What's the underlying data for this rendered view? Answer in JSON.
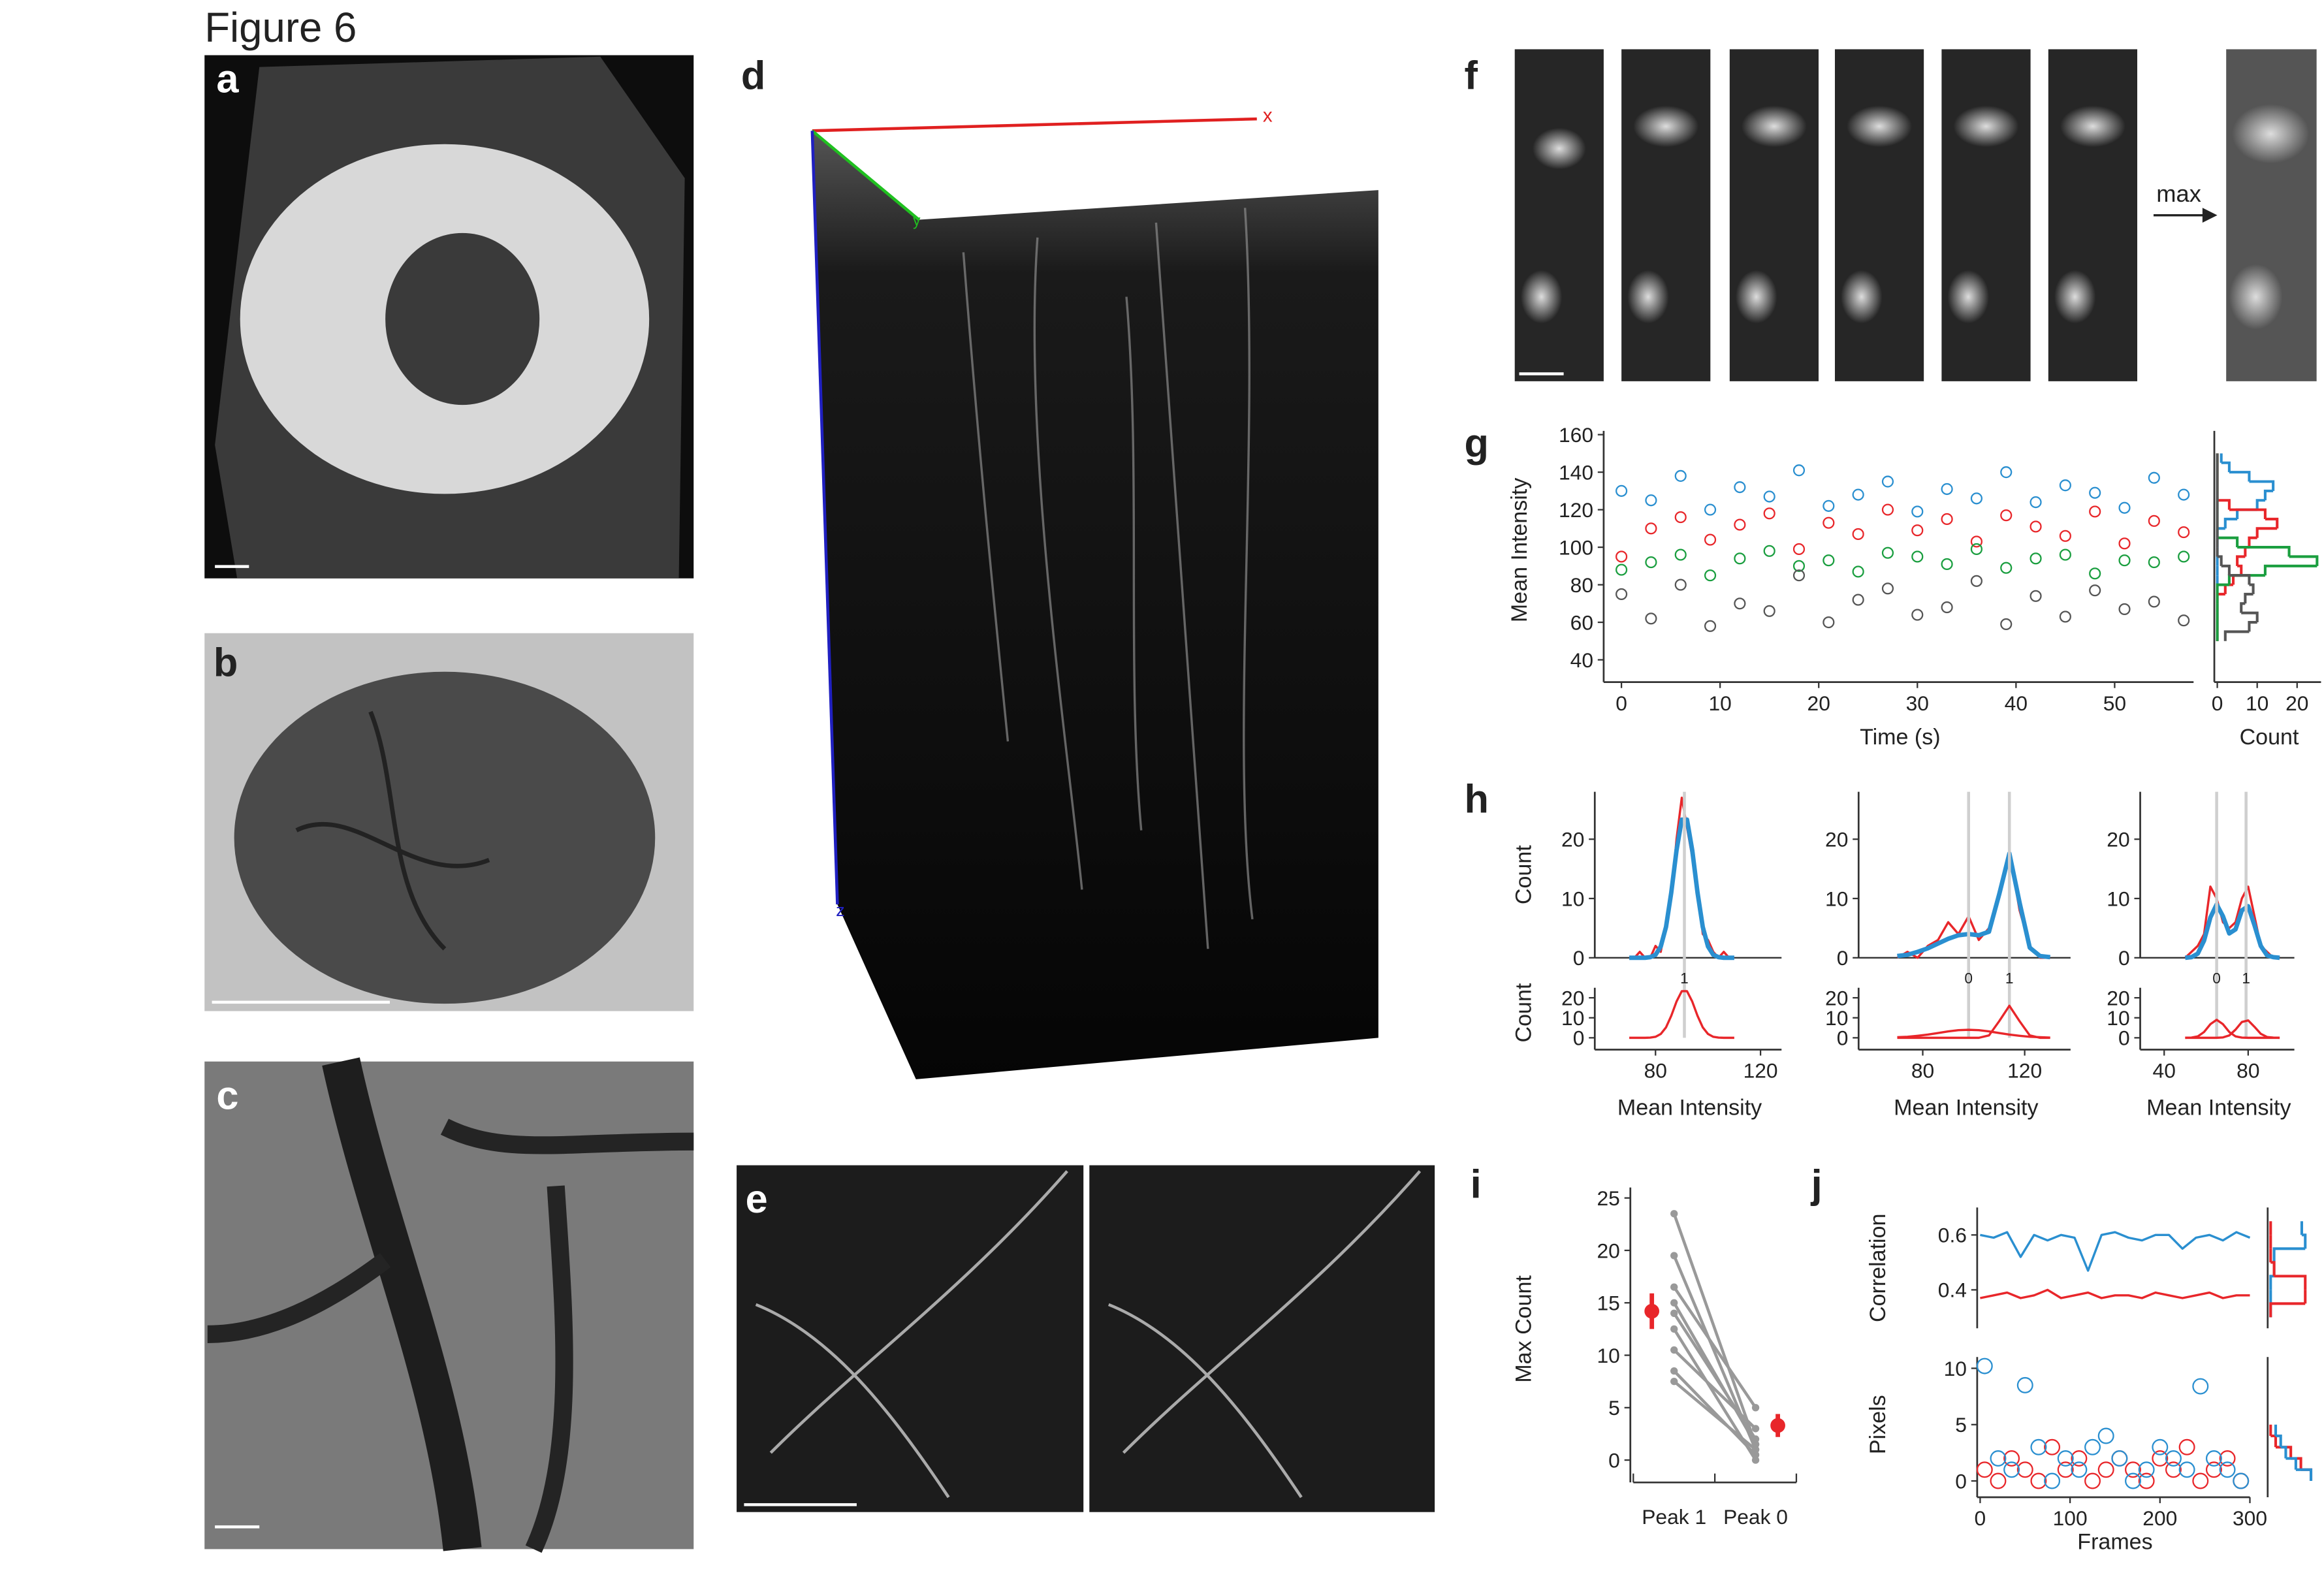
{
  "title": "Figure 6",
  "panel_labels": [
    "a",
    "b",
    "c",
    "d",
    "e",
    "f",
    "g",
    "h",
    "i",
    "j"
  ],
  "axis_labels_3d": [
    "x",
    "y",
    "z"
  ],
  "arrow_label": "max",
  "chart_data": [
    {
      "type": "scatter",
      "xlabel": "Time (s)",
      "ylabel": "Mean Intensity",
      "x": [
        0,
        3,
        6,
        9,
        12,
        15,
        18,
        21,
        24,
        27,
        30,
        33,
        36,
        39,
        42,
        45,
        48,
        51,
        54,
        57
      ],
      "xlim": [
        -1.5,
        58
      ],
      "xticks": [
        0,
        10,
        20,
        30,
        40,
        50
      ],
      "ylim": [
        35,
        162
      ],
      "yticks": [
        40,
        60,
        80,
        100,
        120,
        140,
        160
      ],
      "series": [
        {
          "color": "#2a8fd0",
          "values": [
            130,
            125,
            138,
            120,
            132,
            127,
            141,
            122,
            128,
            135,
            119,
            131,
            126,
            140,
            124,
            133,
            129,
            121,
            137,
            128
          ],
          "hist_counts": [
            0,
            0,
            0,
            0,
            0,
            0,
            0,
            0,
            0,
            0,
            0,
            0,
            2,
            5,
            10,
            12,
            14,
            8,
            3,
            1
          ]
        },
        {
          "color": "#e8262a",
          "values": [
            95,
            110,
            116,
            104,
            112,
            118,
            99,
            113,
            107,
            120,
            109,
            115,
            103,
            117,
            111,
            106,
            119,
            102,
            114,
            108
          ],
          "hist_counts": [
            0,
            0,
            0,
            0,
            0,
            2,
            4,
            6,
            5,
            7,
            8,
            10,
            15,
            12,
            3,
            0,
            0,
            0,
            0,
            0
          ]
        },
        {
          "color": "#1a9e3f",
          "values": [
            88,
            92,
            96,
            85,
            94,
            98,
            90,
            93,
            87,
            97,
            95,
            91,
            99,
            89,
            94,
            96,
            86,
            93,
            92,
            95
          ],
          "hist_counts": [
            0,
            0,
            0,
            0,
            0,
            0,
            3,
            12,
            25,
            18,
            5,
            0,
            0,
            0,
            0,
            0,
            0,
            0,
            0,
            0
          ]
        },
        {
          "color": "#555555",
          "values": [
            75,
            62,
            80,
            58,
            70,
            66,
            85,
            60,
            72,
            78,
            64,
            68,
            82,
            59,
            74,
            63,
            77,
            67,
            71,
            61
          ],
          "hist_counts": [
            2,
            8,
            10,
            6,
            7,
            9,
            8,
            3,
            1,
            0,
            0,
            0,
            0,
            0,
            0,
            0,
            0,
            0,
            0,
            0
          ]
        }
      ],
      "hist_bins": [
        50,
        55,
        60,
        65,
        70,
        75,
        80,
        85,
        90,
        95,
        100,
        105,
        110,
        115,
        120,
        125,
        130,
        135,
        140,
        145,
        150
      ],
      "hist_xlim": [
        0,
        26
      ],
      "hist_xticks": [
        0,
        10,
        20
      ],
      "hist_xlabel": "Count"
    },
    {
      "type": "line",
      "ylabel": "Count",
      "x": [
        70,
        72,
        74,
        76,
        78,
        80,
        82,
        84,
        86,
        88,
        90,
        92,
        94,
        96,
        98,
        100,
        102,
        104,
        106,
        108,
        110
      ],
      "xlim": [
        58,
        128
      ],
      "ylim": [
        0,
        28
      ],
      "yticks": [
        0,
        10,
        20
      ],
      "series": [
        {
          "color": "#e8262a",
          "values": [
            0,
            0,
            1,
            0,
            0,
            2,
            1,
            6,
            10,
            20,
            27,
            22,
            17,
            12,
            4,
            3,
            1,
            0,
            1,
            0,
            0
          ]
        },
        {
          "color": "#2a8fd0",
          "width": 3,
          "values": [
            0,
            0,
            0,
            0,
            0.1,
            0.5,
            1.9,
            5.2,
            11.0,
            18.1,
            23.3,
            23.3,
            18.1,
            11.0,
            5.2,
            1.9,
            0.5,
            0.1,
            0,
            0,
            0
          ]
        }
      ]
    },
    {
      "type": "line",
      "ylabel": "Count",
      "xlabel": "Mean Intensity",
      "x": [
        70,
        72,
        74,
        76,
        78,
        80,
        82,
        84,
        86,
        88,
        90,
        92,
        94,
        96,
        98,
        100,
        102,
        104,
        106,
        108,
        110
      ],
      "xlim": [
        58,
        128
      ],
      "xticks": [
        80,
        120
      ],
      "ylim": [
        0,
        25
      ],
      "yticks": [
        0,
        10,
        20
      ],
      "series": [
        {
          "color": "#e8262a",
          "values": [
            0,
            0,
            0,
            0,
            0.1,
            0.5,
            1.9,
            5.2,
            11.0,
            18.1,
            23.3,
            23.3,
            18.1,
            11.0,
            5.2,
            1.9,
            0.5,
            0.1,
            0,
            0,
            0
          ]
        }
      ],
      "peaks": [
        {
          "value": 91,
          "label": "1"
        }
      ]
    },
    {
      "type": "line",
      "x": [
        70,
        74,
        78,
        82,
        86,
        90,
        94,
        98,
        102,
        106,
        110,
        114,
        118,
        122,
        126,
        130
      ],
      "xlim": [
        56,
        138
      ],
      "ylim": [
        0,
        28
      ],
      "yticks": [
        0,
        10,
        20
      ],
      "series": [
        {
          "color": "#e8262a",
          "values": [
            0,
            1,
            0,
            2,
            3,
            6,
            4,
            7,
            3,
            5,
            11,
            18,
            8,
            2,
            0,
            0
          ]
        },
        {
          "color": "#2a8fd0",
          "width": 3,
          "values": [
            0.3,
            0.5,
            1.0,
            1.6,
            2.4,
            3.2,
            3.8,
            4.0,
            3.8,
            4.4,
            10.7,
            17.6,
            9.3,
            1.7,
            0.3,
            0.1
          ]
        }
      ]
    },
    {
      "type": "line",
      "xlabel": "Mean Intensity",
      "x": [
        70,
        74,
        78,
        82,
        86,
        90,
        94,
        98,
        102,
        106,
        110,
        114,
        118,
        122,
        126,
        130
      ],
      "xlim": [
        56,
        138
      ],
      "xticks": [
        80,
        120
      ],
      "ylim": [
        0,
        25
      ],
      "yticks": [
        0,
        10,
        20
      ],
      "series": [
        {
          "color": "#e8262a",
          "values": [
            0.3,
            0.5,
            1.0,
            1.6,
            2.4,
            3.2,
            3.8,
            4.0,
            3.8,
            3.2,
            2.4,
            1.6,
            1.0,
            0.5,
            0.3,
            0.1
          ]
        },
        {
          "color": "#e8262a",
          "values": [
            0,
            0,
            0,
            0,
            0,
            0,
            0,
            0,
            0,
            1.2,
            8.3,
            16,
            8.3,
            1.2,
            0,
            0
          ]
        }
      ],
      "peaks": [
        {
          "value": 98,
          "label": "0"
        },
        {
          "value": 114,
          "label": "1"
        }
      ]
    },
    {
      "type": "line",
      "x": [
        50,
        53,
        56,
        59,
        62,
        65,
        68,
        71,
        74,
        77,
        80,
        83,
        86,
        89,
        92,
        95
      ],
      "xlim": [
        30,
        102
      ],
      "ylim": [
        0,
        28
      ],
      "yticks": [
        0,
        10,
        20
      ],
      "series": [
        {
          "color": "#e8262a",
          "values": [
            0,
            1,
            2,
            4,
            12,
            10,
            6,
            5,
            6,
            10,
            12,
            7,
            2,
            1,
            0,
            0
          ]
        },
        {
          "color": "#2a8fd0",
          "width": 3,
          "values": [
            0,
            0.1,
            0.7,
            2.9,
            6.8,
            9,
            7.0,
            4.1,
            4.8,
            8.0,
            8.7,
            5.5,
            2.0,
            0.4,
            0.1,
            0
          ]
        }
      ]
    },
    {
      "type": "line",
      "xlabel": "Mean Intensity",
      "x": [
        50,
        53,
        56,
        59,
        62,
        65,
        68,
        71,
        74,
        77,
        80,
        83,
        86,
        89,
        92,
        95
      ],
      "xlim": [
        30,
        102
      ],
      "xticks": [
        40,
        80
      ],
      "ylim": [
        0,
        25
      ],
      "yticks": [
        0,
        10,
        20
      ],
      "series": [
        {
          "color": "#e8262a",
          "values": [
            0,
            0.1,
            0.7,
            2.9,
            6.8,
            9,
            6.8,
            2.9,
            0.7,
            0.1,
            0,
            0,
            0,
            0,
            0,
            0
          ]
        },
        {
          "color": "#e8262a",
          "values": [
            0,
            0,
            0,
            0,
            0,
            0,
            0.2,
            1.2,
            4.1,
            7.9,
            8.7,
            5.5,
            2.0,
            0.4,
            0.1,
            0
          ]
        }
      ],
      "peaks": [
        {
          "value": 65,
          "label": "0"
        },
        {
          "value": 79,
          "label": "1"
        }
      ]
    },
    {
      "type": "paired",
      "ylabel": "Max Count",
      "categories": [
        "Peak 1",
        "Peak 0"
      ],
      "ylim": [
        -1,
        26
      ],
      "yticks": [
        0,
        5,
        10,
        15,
        20,
        25
      ],
      "pairs": [
        [
          23.5,
          1.5
        ],
        [
          19.5,
          1
        ],
        [
          16.5,
          5
        ],
        [
          15,
          1.5
        ],
        [
          14,
          2
        ],
        [
          12.5,
          0
        ],
        [
          10.5,
          3
        ],
        [
          8.5,
          0.5
        ],
        [
          7.5,
          1
        ]
      ],
      "pair_color": "#999999",
      "means": [
        14.2,
        3.3
      ],
      "errors": [
        1.7,
        1.1
      ],
      "mean_color": "#e8262a"
    },
    {
      "type": "line",
      "ylabel": "Correlation",
      "x": [
        0,
        15,
        30,
        45,
        60,
        75,
        90,
        105,
        120,
        135,
        150,
        165,
        180,
        195,
        210,
        225,
        240,
        255,
        270,
        285,
        300
      ],
      "xlim": [
        0,
        300
      ],
      "ylim": [
        0.26,
        0.7
      ],
      "yticks": [
        0.4,
        0.6
      ],
      "series": [
        {
          "color": "#2a8fd0",
          "values": [
            0.6,
            0.59,
            0.61,
            0.52,
            0.6,
            0.58,
            0.6,
            0.59,
            0.47,
            0.6,
            0.61,
            0.59,
            0.58,
            0.6,
            0.6,
            0.55,
            0.59,
            0.6,
            0.58,
            0.61,
            0.59
          ],
          "hist_counts": [
            0,
            0,
            0,
            1,
            1,
            10,
            9
          ]
        },
        {
          "color": "#e8262a",
          "values": [
            0.37,
            0.38,
            0.39,
            0.37,
            0.38,
            0.4,
            0.37,
            0.38,
            0.39,
            0.37,
            0.38,
            0.38,
            0.37,
            0.39,
            0.38,
            0.37,
            0.38,
            0.39,
            0.37,
            0.38,
            0.38
          ],
          "hist_counts": [
            0,
            10,
            10,
            1,
            0,
            0,
            0
          ]
        }
      ],
      "hist_bins": [
        0.3,
        0.35,
        0.4,
        0.45,
        0.5,
        0.55,
        0.6,
        0.65
      ],
      "hist_xlim": [
        0,
        12
      ]
    },
    {
      "type": "scatter",
      "xlabel": "Frames",
      "ylabel": "Pixels",
      "x": [
        5,
        20,
        35,
        50,
        65,
        80,
        95,
        110,
        125,
        140,
        155,
        170,
        185,
        200,
        215,
        230,
        245,
        260,
        275,
        290
      ],
      "xlim": [
        0,
        300
      ],
      "xticks": [
        0,
        100,
        200,
        300
      ],
      "ylim": [
        -1,
        11
      ],
      "yticks": [
        0,
        5,
        10
      ],
      "series": [
        {
          "color": "#e8262a",
          "values": [
            1,
            0,
            2,
            1,
            0,
            3,
            1,
            2,
            0,
            1,
            2,
            1,
            0,
            2,
            1,
            3,
            0,
            1,
            2,
            0
          ],
          "hist_counts": [
            8,
            6,
            4,
            1,
            0
          ]
        },
        {
          "color": "#2a8fd0",
          "values": [
            10.2,
            2,
            1,
            8.5,
            3,
            0,
            2,
            1,
            3,
            4,
            2,
            0,
            1,
            3,
            2,
            1,
            8.4,
            2,
            1,
            0
          ],
          "hist_counts": [
            8,
            5,
            3,
            2,
            1
          ]
        }
      ],
      "hist_bins": [
        0,
        1,
        2,
        3,
        4,
        5
      ],
      "hist_xlim": [
        0,
        10
      ]
    }
  ]
}
